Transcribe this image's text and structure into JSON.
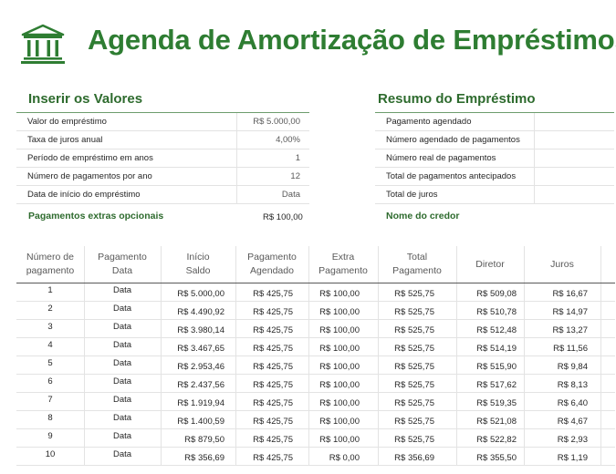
{
  "header": {
    "title": "Agenda de Amortização de Empréstimos",
    "icon": "bank-building-icon",
    "accent_color": "#2e7d32"
  },
  "inputs": {
    "title": "Inserir os Valores",
    "rows": [
      {
        "label": "Valor do empréstimo",
        "value": "R$ 5.000,00"
      },
      {
        "label": "Taxa de juros anual",
        "value": "4,00%"
      },
      {
        "label": "Período de empréstimo em anos",
        "value": "1"
      },
      {
        "label": "Número de pagamentos por ano",
        "value": "12"
      },
      {
        "label": "Data de início do empréstimo",
        "value": "Data"
      }
    ],
    "extra_label": "Pagamentos extras opcionais",
    "extra_value": "R$ 100,00"
  },
  "summary": {
    "title": "Resumo do Empréstimo",
    "rows": [
      {
        "label": "Pagamento agendado",
        "value": ""
      },
      {
        "label": "Número agendado de pagamentos",
        "value": ""
      },
      {
        "label": "Número real de pagamentos",
        "value": ""
      },
      {
        "label": "Total de pagamentos antecipados",
        "value": ""
      },
      {
        "label": "Total de juros",
        "value": ""
      }
    ],
    "lender_label": "Nome do credor"
  },
  "schedule": {
    "headers": [
      "Número de\npagamento",
      "Pagamento\nData",
      "Início\nSaldo",
      "Pagamento\nAgendado",
      "Extra\nPagamento",
      "Total\nPagamento",
      "Diretor",
      "Juros"
    ],
    "rows": [
      [
        "1",
        "Data",
        "R$ 5.000,00",
        "R$ 425,75",
        "R$ 100,00",
        "R$ 525,75",
        "R$ 509,08",
        "R$ 16,67"
      ],
      [
        "2",
        "Data",
        "R$ 4.490,92",
        "R$ 425,75",
        "R$ 100,00",
        "R$ 525,75",
        "R$ 510,78",
        "R$ 14,97"
      ],
      [
        "3",
        "Data",
        "R$ 3.980,14",
        "R$ 425,75",
        "R$ 100,00",
        "R$ 525,75",
        "R$ 512,48",
        "R$ 13,27"
      ],
      [
        "4",
        "Data",
        "R$ 3.467,65",
        "R$ 425,75",
        "R$ 100,00",
        "R$ 525,75",
        "R$ 514,19",
        "R$ 11,56"
      ],
      [
        "5",
        "Data",
        "R$ 2.953,46",
        "R$ 425,75",
        "R$ 100,00",
        "R$ 525,75",
        "R$ 515,90",
        "R$ 9,84"
      ],
      [
        "6",
        "Data",
        "R$ 2.437,56",
        "R$ 425,75",
        "R$ 100,00",
        "R$ 525,75",
        "R$ 517,62",
        "R$ 8,13"
      ],
      [
        "7",
        "Data",
        "R$ 1.919,94",
        "R$ 425,75",
        "R$ 100,00",
        "R$ 525,75",
        "R$ 519,35",
        "R$ 6,40"
      ],
      [
        "8",
        "Data",
        "R$ 1.400,59",
        "R$ 425,75",
        "R$ 100,00",
        "R$ 525,75",
        "R$ 521,08",
        "R$ 4,67"
      ],
      [
        "9",
        "Data",
        "R$ 879,50",
        "R$ 425,75",
        "R$ 100,00",
        "R$ 525,75",
        "R$ 522,82",
        "R$ 2,93"
      ],
      [
        "10",
        "Data",
        "R$ 356,69",
        "R$ 425,75",
        "R$ 0,00",
        "R$ 356,69",
        "R$ 355,50",
        "R$ 1,19"
      ]
    ]
  }
}
